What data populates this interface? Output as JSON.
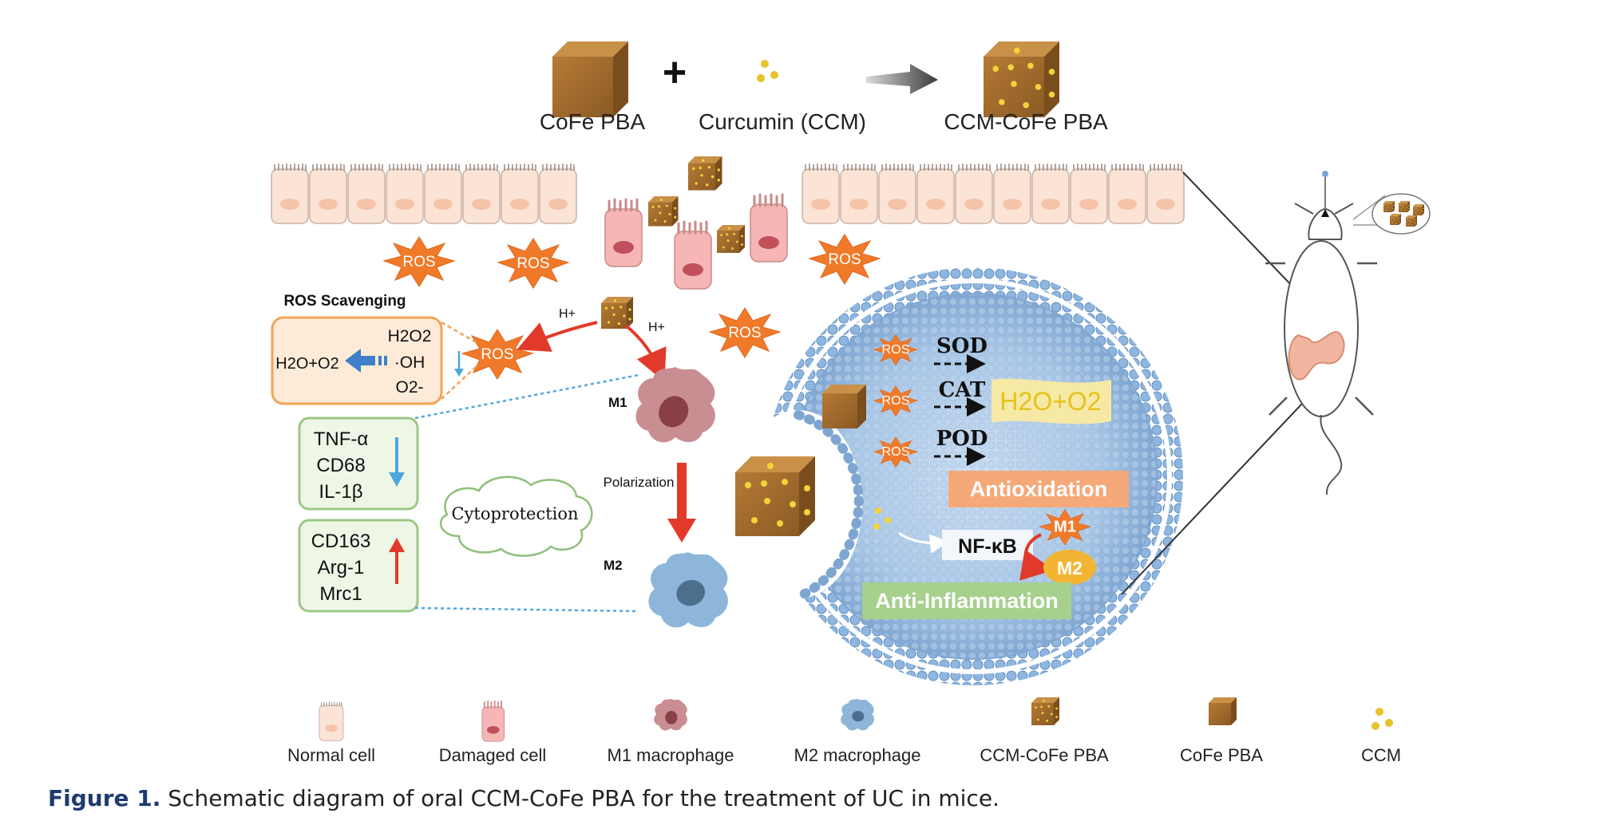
{
  "top": {
    "cofe_label": "CoFe PBA",
    "plus": "+",
    "ccm_label": "Curcumin (CCM)",
    "product_label": "CCM-CoFe PBA"
  },
  "ros_word": "ROS",
  "scavenging": {
    "title": "ROS Scavenging",
    "h2o2": "H2O2",
    "oh": "·OH",
    "o2": "O2-",
    "product": "H2O+O2",
    "h_plus": "H+"
  },
  "markers_down": [
    "TNF-α",
    "CD68",
    "IL-1β"
  ],
  "markers_up": [
    "CD163",
    "Arg-1",
    "Mrc1"
  ],
  "cytoprotection": "Cytoprotection",
  "macrophages": {
    "m1": "M1",
    "m2": "M2",
    "polarization": "Polarization"
  },
  "cell": {
    "enzymes": [
      "SOD",
      "CAT",
      "POD"
    ],
    "product": "H2O+O2",
    "antioxidation": "Antioxidation",
    "nfkb": "NF-κB",
    "m1": "M1",
    "m2": "M2",
    "anti_inflammation": "Anti-Inflammation"
  },
  "legend": [
    {
      "label": "Normal cell"
    },
    {
      "label": "Damaged cell"
    },
    {
      "label": "M1 macrophage"
    },
    {
      "label": "M2 macrophage"
    },
    {
      "label": "CCM-CoFe PBA"
    },
    {
      "label": "CoFe PBA"
    },
    {
      "label": "CCM"
    }
  ],
  "caption": {
    "prefix": "Figure 1.",
    "text": "Schematic diagram of oral CCM-CoFe PBA for the treatment of UC in mice."
  },
  "colors": {
    "cube": "#a8712f",
    "ros": "#f07a2a",
    "membrane": "#8fb4db",
    "red_arrow": "#e23a2a",
    "blue_arrow": "#3f80c9",
    "green_box": "#9cc886",
    "orange_box": "#f5a878"
  }
}
